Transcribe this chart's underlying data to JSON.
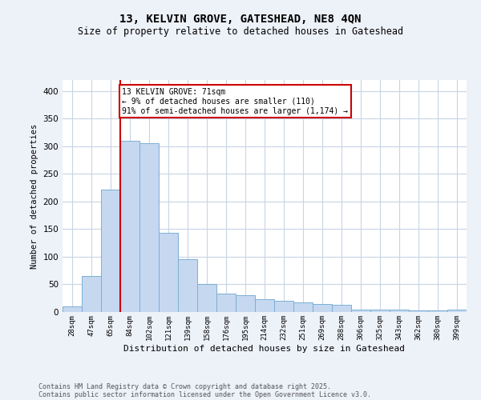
{
  "title1": "13, KELVIN GROVE, GATESHEAD, NE8 4QN",
  "title2": "Size of property relative to detached houses in Gateshead",
  "xlabel": "Distribution of detached houses by size in Gateshead",
  "ylabel": "Number of detached properties",
  "categories": [
    "28sqm",
    "47sqm",
    "65sqm",
    "84sqm",
    "102sqm",
    "121sqm",
    "139sqm",
    "158sqm",
    "176sqm",
    "195sqm",
    "214sqm",
    "232sqm",
    "251sqm",
    "269sqm",
    "288sqm",
    "306sqm",
    "325sqm",
    "343sqm",
    "362sqm",
    "380sqm",
    "399sqm"
  ],
  "values": [
    10,
    65,
    222,
    310,
    305,
    143,
    95,
    50,
    33,
    30,
    23,
    20,
    17,
    15,
    13,
    5,
    5,
    4,
    3,
    3,
    5
  ],
  "bar_color": "#c5d8f0",
  "bar_edge_color": "#7bafd4",
  "vline_color": "#cc0000",
  "vline_index": 2.5,
  "annotation_text": "13 KELVIN GROVE: 71sqm\n← 9% of detached houses are smaller (110)\n91% of semi-detached houses are larger (1,174) →",
  "annotation_box_color": "#ffffff",
  "annotation_box_edge_color": "#cc0000",
  "ylim": [
    0,
    420
  ],
  "yticks": [
    0,
    50,
    100,
    150,
    200,
    250,
    300,
    350,
    400
  ],
  "footer1": "Contains HM Land Registry data © Crown copyright and database right 2025.",
  "footer2": "Contains public sector information licensed under the Open Government Licence v3.0.",
  "bg_color": "#edf1f8",
  "plot_bg_color": "#ffffff",
  "grid_color": "#c8d4e4"
}
